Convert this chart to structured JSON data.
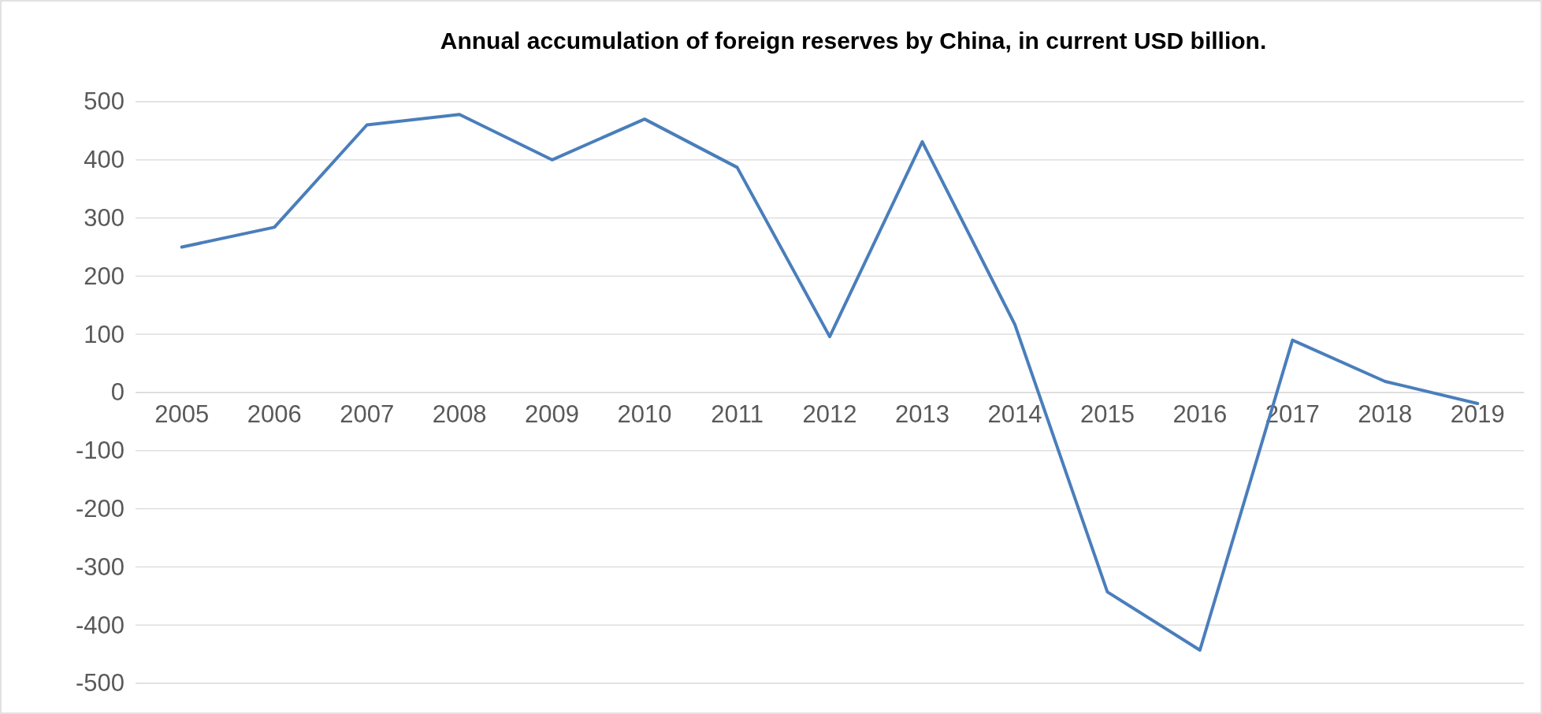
{
  "chart_data": {
    "type": "line",
    "title": "Annual accumulation of foreign reserves by China, in current USD billion.",
    "categories": [
      "2005",
      "2006",
      "2007",
      "2008",
      "2009",
      "2010",
      "2011",
      "2012",
      "2013",
      "2014",
      "2015",
      "2016",
      "2017",
      "2018",
      "2019"
    ],
    "series": [
      {
        "color": "#4a7ebb",
        "values": [
          250,
          284,
          460,
          478,
          400,
          470,
          387,
          96,
          431,
          117,
          -343,
          -443,
          90,
          19,
          -19
        ]
      }
    ],
    "ylim": [
      -500,
      500
    ],
    "yticks": [
      -500,
      -400,
      -300,
      -200,
      -100,
      0,
      100,
      200,
      300,
      400,
      500
    ],
    "grid": "y",
    "marker": "none",
    "line_style": "solid"
  }
}
